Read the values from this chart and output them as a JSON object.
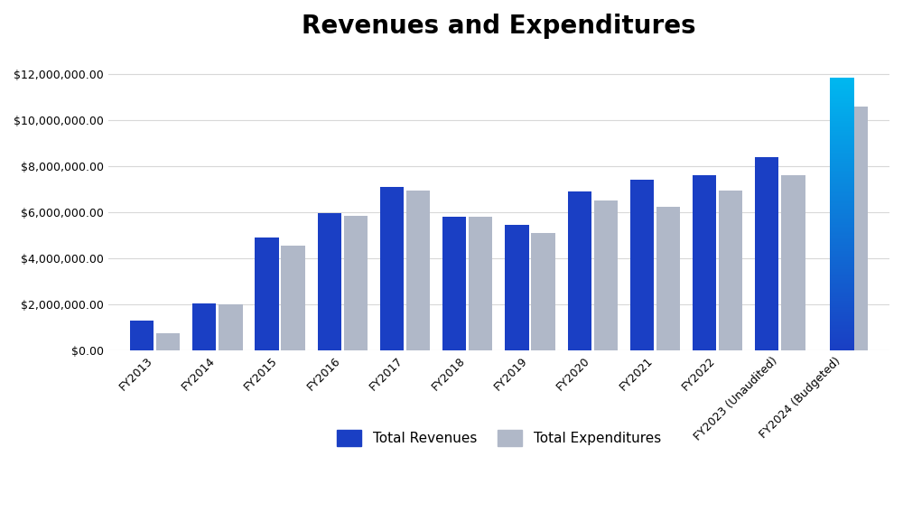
{
  "categories": [
    "FY2013",
    "FY2014",
    "FY2015",
    "FY2016",
    "FY2017",
    "FY2018",
    "FY2019",
    "FY2020",
    "FY2021",
    "FY2022",
    "FY2023 (Unaudited)",
    "FY2024 (Budgeted)"
  ],
  "revenues": [
    1300000,
    2050000,
    4900000,
    5950000,
    7100000,
    5800000,
    5450000,
    6900000,
    7400000,
    7600000,
    8400000,
    11800000
  ],
  "expenditures": [
    750000,
    2000000,
    4550000,
    5850000,
    6950000,
    5800000,
    5100000,
    6500000,
    6250000,
    6950000,
    7600000,
    10600000
  ],
  "expenditure_color": "#b0b8c8",
  "title": "Revenues and Expenditures",
  "title_fontsize": 20,
  "title_fontweight": "bold",
  "legend_revenue": "Total Revenues",
  "legend_expenditure": "Total Expenditures",
  "ylim": [
    0,
    13000000
  ],
  "yticks": [
    0,
    2000000,
    4000000,
    6000000,
    8000000,
    10000000,
    12000000
  ],
  "background_color": "#ffffff",
  "grid_color": "#d8d8d8",
  "bar_width": 0.38,
  "revenue_base_color": "#1a3fc4",
  "revenue_last_bottom": "#1a3fc4",
  "revenue_last_top": "#00b8f0",
  "xlabel_fontsize": 9,
  "ylabel_fontsize": 9,
  "legend_fontsize": 11,
  "fig_width": 10.0,
  "fig_height": 5.88,
  "dpi": 100
}
